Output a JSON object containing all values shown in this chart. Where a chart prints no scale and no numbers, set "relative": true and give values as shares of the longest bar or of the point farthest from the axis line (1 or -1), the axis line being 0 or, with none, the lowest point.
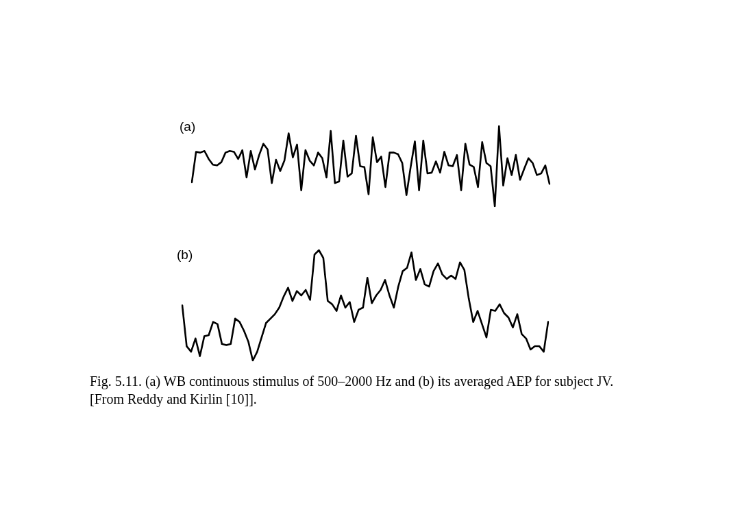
{
  "chart_data": [
    {
      "type": "line",
      "title": "(a)",
      "relative": true,
      "categories": [
        null,
        null,
        null,
        null,
        null,
        null,
        null,
        null,
        null,
        null,
        null,
        null,
        null,
        null,
        null,
        null,
        null,
        null,
        null,
        null,
        null,
        null,
        null,
        null,
        null,
        null,
        null,
        null,
        null,
        null,
        null,
        null,
        null,
        null,
        null,
        null,
        null,
        null,
        null,
        null,
        null,
        null,
        null,
        null,
        null,
        null,
        null,
        null,
        null,
        null,
        null,
        null,
        null,
        null,
        null,
        null,
        null,
        null,
        null,
        null,
        null,
        null,
        null,
        null,
        null,
        null,
        null,
        null,
        null,
        null,
        null,
        null,
        null,
        null,
        null,
        null,
        null,
        null,
        null,
        null,
        null,
        null,
        null,
        null,
        null,
        null
      ],
      "series": [
        {
          "color": "#000000",
          "values": [
            0.3,
            0.68,
            0.67,
            0.69,
            0.59,
            0.52,
            0.51,
            0.55,
            0.67,
            0.69,
            0.68,
            0.59,
            0.7,
            0.36,
            0.69,
            0.46,
            0.64,
            0.78,
            0.71,
            0.29,
            0.58,
            0.44,
            0.57,
            0.91,
            0.61,
            0.77,
            0.2,
            0.7,
            0.57,
            0.51,
            0.67,
            0.6,
            0.36,
            0.94,
            0.29,
            0.31,
            0.82,
            0.37,
            0.41,
            0.88,
            0.5,
            0.49,
            0.15,
            0.86,
            0.55,
            0.62,
            0.24,
            0.67,
            0.67,
            0.65,
            0.54,
            0.14,
            0.49,
            0.81,
            0.2,
            0.82,
            0.41,
            0.42,
            0.56,
            0.42,
            0.68,
            0.51,
            0.5,
            0.64,
            0.2,
            0.78,
            0.52,
            0.49,
            0.24,
            0.8,
            0.54,
            0.5,
            0,
            1,
            0.26,
            0.6,
            0.39,
            0.64,
            0.33,
            0.47,
            0.6,
            0.54,
            0.39,
            0.41,
            0.51,
            0.28
          ]
        }
      ]
    },
    {
      "type": "line",
      "title": "(b)",
      "relative": true,
      "categories": [
        null,
        null,
        null,
        null,
        null,
        null,
        null,
        null,
        null,
        null,
        null,
        null,
        null,
        null,
        null,
        null,
        null,
        null,
        null,
        null,
        null,
        null,
        null,
        null,
        null,
        null,
        null,
        null,
        null,
        null,
        null,
        null,
        null,
        null,
        null,
        null,
        null,
        null,
        null,
        null,
        null,
        null,
        null,
        null,
        null,
        null,
        null,
        null,
        null,
        null,
        null,
        null,
        null,
        null,
        null,
        null,
        null,
        null,
        null,
        null,
        null,
        null,
        null,
        null,
        null,
        null,
        null,
        null,
        null,
        null,
        null,
        null,
        null,
        null,
        null,
        null,
        null,
        null,
        null,
        null,
        null,
        null,
        null,
        null
      ],
      "series": [
        {
          "color": "#000000",
          "values": [
            0.5,
            0.13,
            0.08,
            0.2,
            0.04,
            0.22,
            0.23,
            0.35,
            0.33,
            0.15,
            0.14,
            0.15,
            0.38,
            0.35,
            0.27,
            0.17,
            0,
            0.08,
            0.21,
            0.34,
            0.38,
            0.42,
            0.48,
            0.58,
            0.66,
            0.54,
            0.63,
            0.59,
            0.64,
            0.55,
            0.96,
            1,
            0.93,
            0.54,
            0.51,
            0.45,
            0.59,
            0.48,
            0.53,
            0.35,
            0.46,
            0.48,
            0.75,
            0.52,
            0.59,
            0.64,
            0.73,
            0.59,
            0.48,
            0.67,
            0.81,
            0.84,
            0.98,
            0.73,
            0.83,
            0.69,
            0.67,
            0.81,
            0.88,
            0.78,
            0.74,
            0.77,
            0.74,
            0.89,
            0.82,
            0.56,
            0.35,
            0.45,
            0.33,
            0.21,
            0.46,
            0.45,
            0.51,
            0.43,
            0.39,
            0.3,
            0.42,
            0.24,
            0.2,
            0.1,
            0.13,
            0.13,
            0.08,
            0.35
          ]
        }
      ],
      "annotations": [
        "Fig. 5.11.  (a) WB continuous stimulus of 500–2000 Hz and (b) its averaged AEP for subject JV. [From Reddy and Kirlin [10]]."
      ]
    }
  ]
}
